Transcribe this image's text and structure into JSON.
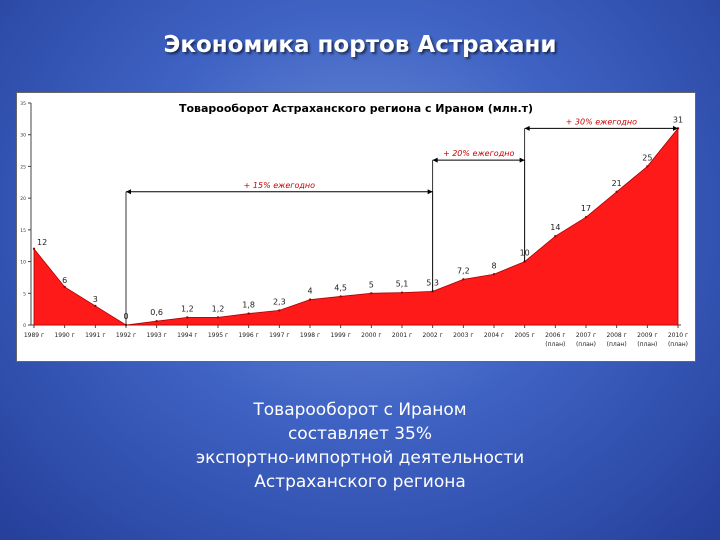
{
  "slide": {
    "title": "Экономика портов Астрахани",
    "caption_lines": [
      "Товарооборот с Ираном",
      "составляет 35%",
      "экспортно-импортной деятельности",
      "Астраханского региона"
    ]
  },
  "colors": {
    "fill": "#ff1a1a",
    "stroke": "#aa0000",
    "annotation": "#cc0000"
  },
  "chart_data": {
    "type": "area",
    "title": "Товарооборот Астраханского региона с Ираном (млн.т)",
    "categories": [
      "1989 г",
      "1990 г",
      "1991 г",
      "1992 г",
      "1993 г",
      "1994 г",
      "1995 г",
      "1996 г",
      "1997 г",
      "1998 г",
      "1999 г",
      "2000 г",
      "2001 г",
      "2002 г",
      "2003 г",
      "2004 г",
      "2005 г",
      "2006 г",
      "2007 г",
      "2008 г",
      "2009 г",
      "2010 г"
    ],
    "category_notes": [
      "",
      "",
      "",
      "",
      "",
      "",
      "",
      "",
      "",
      "",
      "",
      "",
      "",
      "",
      "",
      "",
      "",
      "(план)",
      "(план)",
      "(план)",
      "(план)",
      "(план)"
    ],
    "values": [
      12,
      6,
      3,
      0,
      0.6,
      1.2,
      1.2,
      1.8,
      2.3,
      4,
      4.5,
      5,
      5.1,
      5.3,
      7.2,
      8,
      10,
      14,
      17,
      21,
      25,
      31
    ],
    "labels": [
      "12",
      "6",
      "3",
      "0",
      "0,6",
      "1,2",
      "1,2",
      "1,8",
      "2,3",
      "4",
      "4,5",
      "5",
      "5,1",
      "5,3",
      "7,2",
      "8",
      "10",
      "14",
      "17",
      "21",
      "25",
      "31"
    ],
    "ylim": [
      0,
      35
    ],
    "yticks": [
      "0",
      "5",
      "10",
      "15",
      "20",
      "25",
      "30",
      "35"
    ],
    "grid": false,
    "annotations": [
      {
        "label": "+ 15% ежегодно",
        "from_index": 3,
        "to_index": 13,
        "level": 21
      },
      {
        "label": "+ 20% ежегодно",
        "from_index": 13,
        "to_index": 16,
        "level": 26
      },
      {
        "label": "+ 30% ежегодно",
        "from_index": 16,
        "to_index": 21,
        "level": 31
      }
    ]
  }
}
